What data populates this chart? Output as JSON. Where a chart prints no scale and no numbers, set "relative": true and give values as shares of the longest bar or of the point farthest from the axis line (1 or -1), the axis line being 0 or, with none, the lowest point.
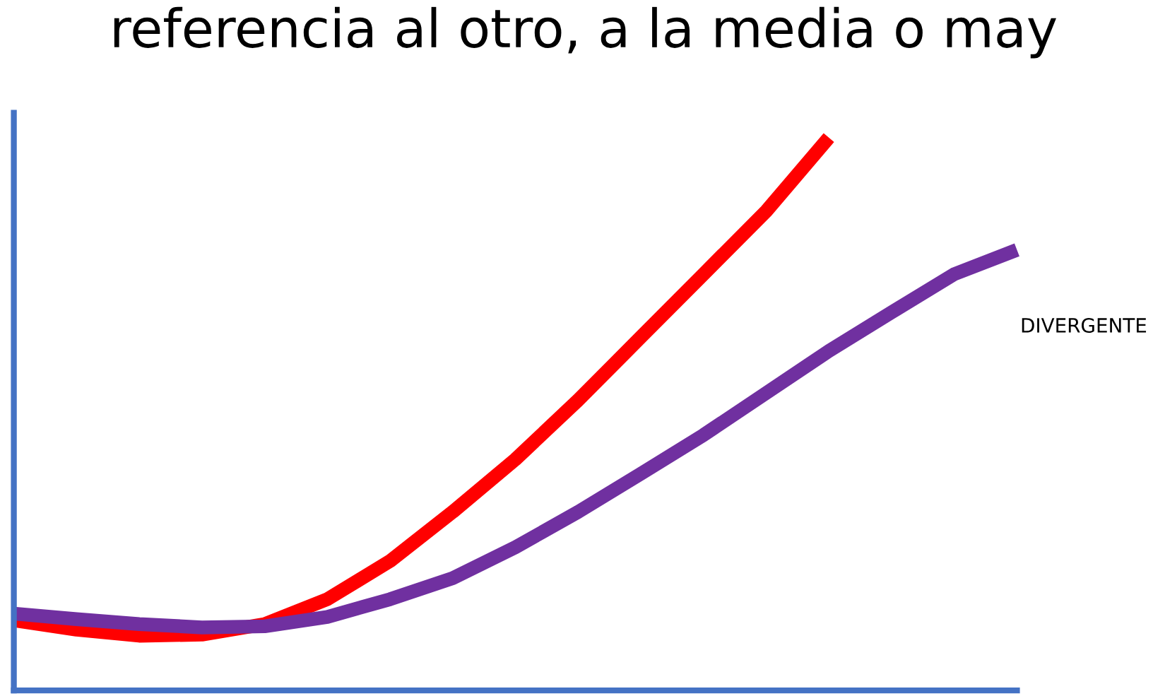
{
  "chart_data": {
    "type": "line",
    "title": "referencia al otro, a la media o may",
    "relative": true,
    "categories": [
      null,
      null,
      null,
      null,
      null,
      null,
      null,
      null,
      null,
      null,
      null,
      null,
      null,
      null,
      null,
      null,
      null
    ],
    "series": [
      {
        "color": "#ff0000",
        "values": [
          0.127,
          0.11,
          0.099,
          0.101,
          0.12,
          0.165,
          0.234,
          0.323,
          0.418,
          0.525,
          0.639,
          0.753,
          0.867,
          1,
          null,
          null,
          null
        ]
      },
      {
        "color": "#7030a0",
        "values": [
          0.139,
          0.129,
          0.12,
          0.114,
          0.116,
          0.133,
          0.165,
          0.203,
          0.259,
          0.323,
          0.392,
          0.462,
          0.538,
          0.614,
          0.684,
          0.753,
          0.797
        ]
      }
    ],
    "annotations": [
      "DIVERGENTE"
    ],
    "grid": false,
    "marker": "none",
    "line_style": "solid"
  }
}
